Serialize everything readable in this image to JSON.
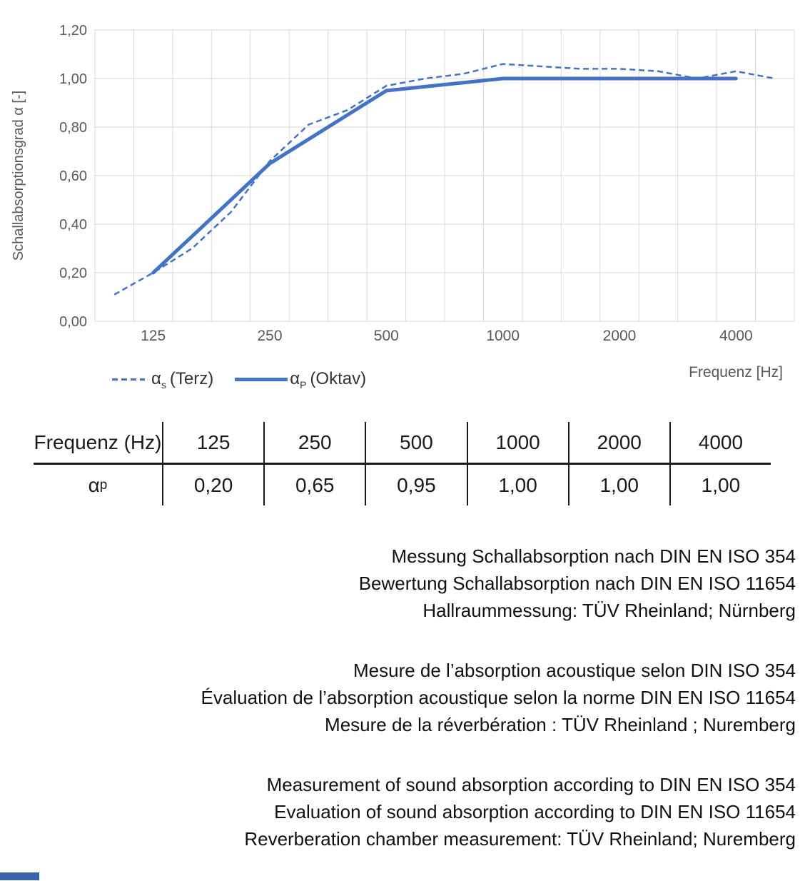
{
  "chart": {
    "y_axis_title": "Schallabsorptionsgrad α [-]",
    "x_axis_title": "Frequenz [Hz]",
    "legend": {
      "items": [
        {
          "symbol": "α",
          "sub": "s",
          "rest": "(Terz)",
          "style": "dashed"
        },
        {
          "symbol": "α",
          "sub": "P",
          "rest": "(Oktav)",
          "style": "solid"
        }
      ]
    }
  },
  "chart_data": {
    "type": "line",
    "x_scale": "log-third-octave-categories",
    "categories_third_octave": [
      100,
      125,
      160,
      200,
      250,
      315,
      400,
      500,
      630,
      800,
      1000,
      1250,
      1600,
      2000,
      2500,
      3150,
      4000,
      5000
    ],
    "series": [
      {
        "name": "αs (Terz)",
        "style": "dashed",
        "x": [
          100,
          125,
          160,
          200,
          250,
          315,
          400,
          500,
          630,
          800,
          1000,
          1250,
          1600,
          2000,
          2500,
          3150,
          4000,
          5000
        ],
        "values": [
          0.11,
          0.2,
          0.3,
          0.45,
          0.66,
          0.81,
          0.87,
          0.97,
          1.0,
          1.02,
          1.06,
          1.05,
          1.04,
          1.04,
          1.03,
          1.0,
          1.03,
          1.0
        ]
      },
      {
        "name": "αP (Oktav)",
        "style": "solid",
        "x": [
          125,
          250,
          500,
          1000,
          2000,
          4000
        ],
        "values": [
          0.2,
          0.65,
          0.95,
          1.0,
          1.0,
          1.0
        ]
      }
    ],
    "ylim": [
      0.0,
      1.2
    ],
    "y_ticks": [
      "0,00",
      "0,20",
      "0,40",
      "0,60",
      "0,80",
      "1,00",
      "1,20"
    ],
    "x_tick_labels": [
      "125",
      "250",
      "500",
      "1000",
      "2000",
      "4000"
    ],
    "grid": true,
    "legend_position": "bottom-left",
    "line_color": "#4472C4",
    "grid_color": "#D9D9D9",
    "axis_text_color": "#595959"
  },
  "table": {
    "header_label": "Frequenz (Hz)",
    "row_symbol": "α",
    "row_sub": "p",
    "frequencies": [
      "125",
      "250",
      "500",
      "1000",
      "2000",
      "4000"
    ],
    "values": [
      "0,20",
      "0,65",
      "0,95",
      "1,00",
      "1,00",
      "1,00"
    ]
  },
  "notes": {
    "german": [
      "Messung Schallabsorption nach DIN EN ISO 354",
      "Bewertung Schallabsorption nach DIN EN ISO 11654",
      "Hallraummessung: TÜV Rheinland; Nürnberg"
    ],
    "french": [
      "Mesure de l’absorption acoustique selon DIN ISO 354",
      "Évaluation de l’absorption acoustique selon la norme DIN EN ISO 11654",
      "Mesure de la réverbération : TÜV Rheinland ; Nuremberg"
    ],
    "english": [
      "Measurement of sound absorption according to DIN EN ISO 354",
      "Evaluation of sound absorption according to DIN EN ISO 11654",
      "Reverberation chamber measurement: TÜV Rheinland; Nuremberg"
    ]
  }
}
